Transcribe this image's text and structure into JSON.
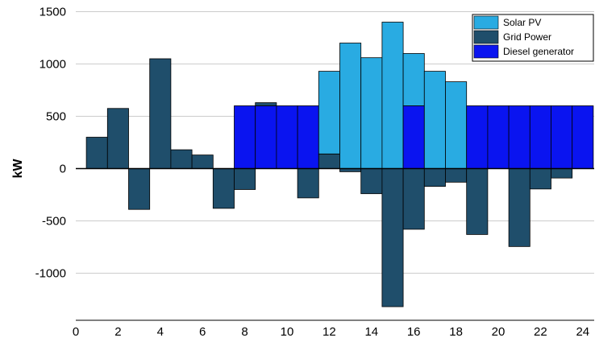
{
  "chart_data": {
    "type": "bar",
    "stacking": "stacked (positive and negative parts stacked separately)",
    "title": "",
    "xlabel": "",
    "ylabel": "kW",
    "ylim": [
      -1500,
      1500
    ],
    "y_ticks": [
      1500,
      1000,
      500,
      0,
      -500,
      -1000
    ],
    "xlim": [
      0,
      24.5
    ],
    "x_ticks": [
      0,
      2,
      4,
      6,
      8,
      10,
      12,
      14,
      16,
      18,
      20,
      22,
      24
    ],
    "grid": "horizontal",
    "legend_position": "top-right",
    "x": [
      1,
      2,
      3,
      4,
      5,
      6,
      7,
      8,
      9,
      10,
      11,
      12,
      13,
      14,
      15,
      16,
      17,
      18,
      19,
      20,
      21,
      22,
      23,
      24
    ],
    "series": [
      {
        "name": "Solar PV",
        "color": "#29abe2",
        "values": [
          0,
          0,
          0,
          0,
          0,
          0,
          0,
          0,
          0,
          0,
          0,
          790,
          1200,
          1060,
          1400,
          500,
          930,
          830,
          0,
          0,
          0,
          0,
          0,
          0
        ]
      },
      {
        "name": "Grid Power",
        "color": "#1f4e6b",
        "values": [
          300,
          575,
          -390,
          1050,
          180,
          130,
          -380,
          -200,
          30,
          0,
          -280,
          140,
          -30,
          -240,
          -1320,
          -580,
          -170,
          -130,
          -630,
          0,
          -745,
          -195,
          -90,
          0
        ]
      },
      {
        "name": "Diesel generator",
        "color": "#0a14f0",
        "values": [
          0,
          0,
          0,
          0,
          0,
          0,
          0,
          600,
          600,
          600,
          600,
          0,
          0,
          0,
          0,
          600,
          0,
          0,
          600,
          600,
          600,
          600,
          600,
          600
        ]
      }
    ]
  }
}
